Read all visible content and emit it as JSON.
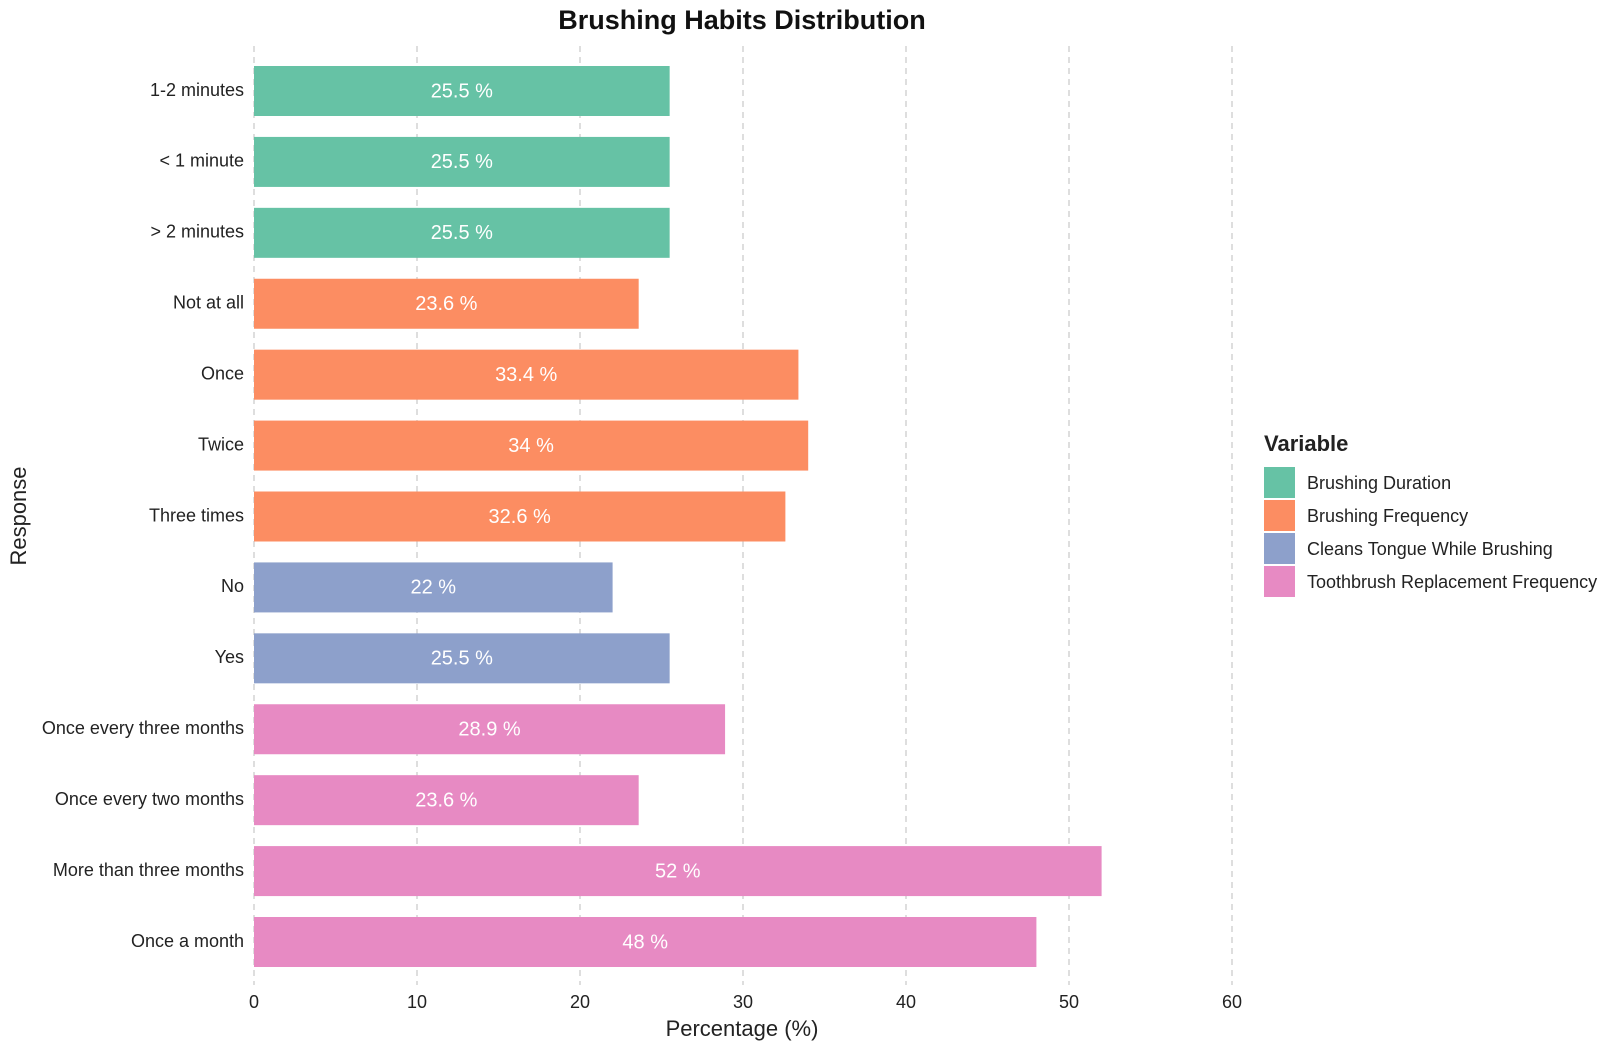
{
  "chart_data": {
    "type": "bar",
    "orientation": "horizontal",
    "title": "Brushing Habits Distribution",
    "x_label": "Percentage (%)",
    "y_label": "Response",
    "categories": [
      "1-2 minutes",
      "< 1 minute",
      "> 2 minutes",
      "Not at all",
      "Once",
      "Twice",
      "Three times",
      "No",
      "Yes",
      "Once every three months",
      "Once every two months",
      "More than three months",
      "Once a month"
    ],
    "series": [
      {
        "name": "Brushing Duration",
        "color": "#66c2a5",
        "values": [
          25.5,
          25.5,
          25.5,
          null,
          null,
          null,
          null,
          null,
          null,
          null,
          null,
          null,
          null
        ],
        "value_labels": [
          "25.5 %",
          "25.5 %",
          "25.5 %",
          null,
          null,
          null,
          null,
          null,
          null,
          null,
          null,
          null,
          null
        ]
      },
      {
        "name": "Brushing Frequency",
        "color": "#fc8d62",
        "values": [
          null,
          null,
          null,
          23.6,
          33.4,
          34,
          32.6,
          null,
          null,
          null,
          null,
          null,
          null
        ],
        "value_labels": [
          null,
          null,
          null,
          "23.6 %",
          "33.4 %",
          "34 %",
          "32.6 %",
          null,
          null,
          null,
          null,
          null,
          null
        ]
      },
      {
        "name": "Cleans Tongue While Brushing",
        "color": "#8da0cb",
        "values": [
          null,
          null,
          null,
          null,
          null,
          null,
          null,
          22,
          25.5,
          null,
          null,
          null,
          null
        ],
        "value_labels": [
          null,
          null,
          null,
          null,
          null,
          null,
          null,
          "22 %",
          "25.5 %",
          null,
          null,
          null,
          null
        ]
      },
      {
        "name": "Toothbrush Replacement Frequency",
        "color": "#e78ac3",
        "values": [
          null,
          null,
          null,
          null,
          null,
          null,
          null,
          null,
          null,
          28.9,
          23.6,
          52,
          48
        ],
        "value_labels": [
          null,
          null,
          null,
          null,
          null,
          null,
          null,
          null,
          null,
          "28.9 %",
          "23.6 %",
          "52 %",
          "48 %"
        ]
      }
    ],
    "xlim": [
      0,
      60
    ],
    "xticks": [
      0,
      10,
      20,
      30,
      40,
      50,
      60
    ],
    "grid": true,
    "legend_title": "Variable",
    "legend_position": "right"
  }
}
